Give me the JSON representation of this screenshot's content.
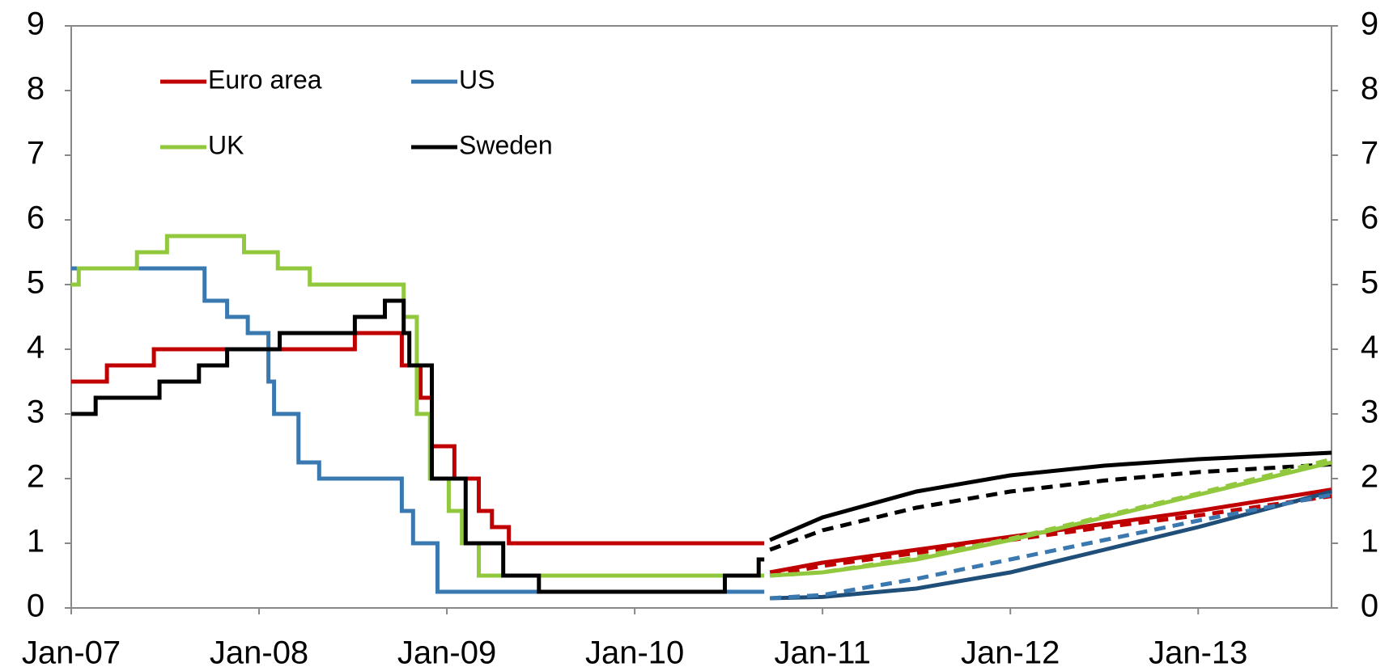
{
  "chart_data": {
    "type": "line",
    "step": true,
    "xlim": [
      2007,
      2013.71
    ],
    "ylim": [
      0,
      9
    ],
    "y2lim": [
      0,
      9
    ],
    "xticks": [
      {
        "value": 2007,
        "label": "Jan-07"
      },
      {
        "value": 2008,
        "label": "Jan-08"
      },
      {
        "value": 2009,
        "label": "Jan-09"
      },
      {
        "value": 2010,
        "label": "Jan-10"
      },
      {
        "value": 2011,
        "label": "Jan-11"
      },
      {
        "value": 2012,
        "label": "Jan-12"
      },
      {
        "value": 2013,
        "label": "Jan-13"
      }
    ],
    "yticks": [
      0,
      1,
      2,
      3,
      4,
      5,
      6,
      7,
      8,
      9
    ],
    "y2ticks": [
      0,
      1,
      2,
      3,
      4,
      5,
      6,
      7,
      8,
      9
    ],
    "series": [
      {
        "name": "Euro area",
        "color": "#c00000",
        "x": [
          2007,
          2007.19,
          2007.44,
          2008.51,
          2008.76,
          2008.86,
          2008.92,
          2009.04,
          2009.17,
          2009.24,
          2009.33,
          2010.69
        ],
        "values": [
          3.5,
          3.75,
          4,
          4.25,
          3.75,
          3.25,
          2.5,
          2,
          1.5,
          1.25,
          1,
          1
        ]
      },
      {
        "name": "US",
        "color": "#3a78b0",
        "x": [
          2007,
          2007.71,
          2007.83,
          2007.94,
          2008.05,
          2008.08,
          2008.21,
          2008.32,
          2008.76,
          2008.82,
          2008.95,
          2010.69
        ],
        "values": [
          5.25,
          4.75,
          4.5,
          4.25,
          3.5,
          3,
          2.25,
          2,
          1.5,
          1,
          0.25,
          0.25
        ]
      },
      {
        "name": "UK",
        "color": "#92c83e",
        "x": [
          2007,
          2007.04,
          2007.35,
          2007.51,
          2007.92,
          2008.1,
          2008.27,
          2008.77,
          2008.84,
          2008.91,
          2009.01,
          2009.08,
          2009.17,
          2010.69
        ],
        "values": [
          5,
          5.25,
          5.5,
          5.75,
          5.5,
          5.25,
          5,
          4.5,
          3,
          2,
          1.5,
          1,
          0.5,
          0.5
        ]
      },
      {
        "name": "Sweden",
        "color": "#000000",
        "x": [
          2007,
          2007.13,
          2007.47,
          2007.68,
          2007.83,
          2008.11,
          2008.51,
          2008.67,
          2008.77,
          2008.8,
          2008.92,
          2009.1,
          2009.3,
          2009.49,
          2010.48,
          2010.66,
          2010.69
        ],
        "values": [
          3,
          3.25,
          3.5,
          3.75,
          4,
          4.25,
          4.5,
          4.75,
          4.25,
          3.75,
          2,
          1,
          0.5,
          0.25,
          0.5,
          0.75,
          0.75
        ]
      },
      {
        "color": "#000000",
        "dashed": false,
        "x": [
          2010.72,
          2011,
          2011.5,
          2012,
          2012.5,
          2013,
          2013.71
        ],
        "values": [
          1.05,
          1.4,
          1.8,
          2.05,
          2.2,
          2.3,
          2.4
        ]
      },
      {
        "color": "#000000",
        "dashed": true,
        "x": [
          2010.72,
          2011,
          2011.5,
          2012,
          2012.5,
          2013,
          2013.71
        ],
        "values": [
          0.9,
          1.2,
          1.55,
          1.8,
          1.97,
          2.1,
          2.22
        ]
      },
      {
        "color": "#c00000",
        "dashed": false,
        "x": [
          2010.72,
          2011,
          2011.5,
          2012,
          2012.5,
          2013,
          2013.71
        ],
        "values": [
          0.55,
          0.7,
          0.9,
          1.1,
          1.3,
          1.5,
          1.83
        ]
      },
      {
        "color": "#c00000",
        "dashed": true,
        "x": [
          2010.72,
          2011,
          2011.5,
          2012,
          2012.5,
          2013,
          2013.71
        ],
        "values": [
          0.5,
          0.65,
          0.85,
          1.05,
          1.25,
          1.43,
          1.73
        ]
      },
      {
        "color": "#92c83e",
        "dashed": false,
        "x": [
          2010.72,
          2011,
          2011.5,
          2012,
          2012.5,
          2013,
          2013.71
        ],
        "values": [
          0.5,
          0.55,
          0.75,
          1.05,
          1.4,
          1.75,
          2.25
        ]
      },
      {
        "color": "#92c83e",
        "dashed": true,
        "x": [
          2010.72,
          2011,
          2011.5,
          2012,
          2012.5,
          2013,
          2013.71
        ],
        "values": [
          0.5,
          0.55,
          0.78,
          1.07,
          1.42,
          1.77,
          2.3
        ]
      },
      {
        "color": "#1f4e79",
        "dashed": false,
        "x": [
          2010.72,
          2011,
          2011.5,
          2012,
          2012.5,
          2013,
          2013.71
        ],
        "values": [
          0.15,
          0.17,
          0.3,
          0.55,
          0.9,
          1.25,
          1.8
        ]
      },
      {
        "color": "#3a78b0",
        "dashed": true,
        "x": [
          2010.72,
          2011,
          2011.5,
          2012,
          2012.5,
          2013,
          2013.71
        ],
        "values": [
          0.15,
          0.2,
          0.45,
          0.75,
          1.05,
          1.35,
          1.75
        ]
      }
    ]
  }
}
